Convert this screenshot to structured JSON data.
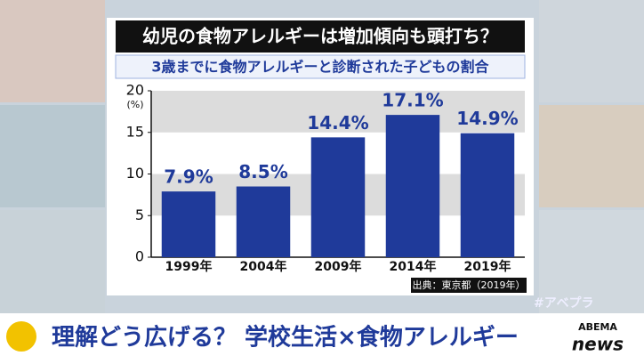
{
  "chart_data": {
    "type": "bar",
    "title": "幼児の食物アレルギーは増加傾向も頭打ち？",
    "subtitle": "3歳までに食物アレルギーと診断された子どもの割合",
    "y_label": "(%)",
    "categories": [
      "1999年",
      "2004年",
      "2009年",
      "2014年",
      "2019年"
    ],
    "values": [
      7.9,
      8.5,
      14.4,
      17.1,
      14.9
    ],
    "value_labels": [
      "7.9%",
      "8.5%",
      "14.4%",
      "17.1%",
      "14.9%"
    ],
    "color": "#1f3a9a",
    "ylim": [
      0,
      20
    ],
    "yticks": [
      0,
      5,
      10,
      15,
      20
    ],
    "grid": true,
    "source": "出典：東京都（2019年）"
  },
  "caption": "理解どう広げる？ 学校生活×食物アレルギー",
  "hashtag": "#アベプラ",
  "logo": {
    "top": "ABEMA",
    "bottom": "news"
  }
}
